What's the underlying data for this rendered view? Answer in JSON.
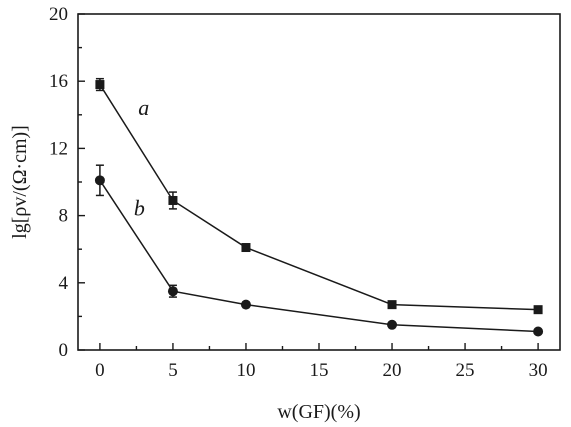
{
  "chart_data": {
    "type": "line",
    "xlabel": "w(GF)(%)",
    "ylabel": "lg[ρv/(Ω·cm)]",
    "xlim": [
      -1.5,
      31.5
    ],
    "ylim": [
      0,
      20
    ],
    "xticks": [
      0,
      5,
      10,
      15,
      20,
      25,
      30
    ],
    "yticks": [
      0,
      4,
      8,
      12,
      16,
      20
    ],
    "grid": false,
    "series": [
      {
        "name": "a",
        "marker": "square",
        "x": [
          0,
          5,
          10,
          20,
          30
        ],
        "y": [
          15.8,
          8.9,
          6.1,
          2.7,
          2.4
        ],
        "err": [
          0.35,
          0.5,
          0,
          0,
          0
        ]
      },
      {
        "name": "b",
        "marker": "circle",
        "x": [
          0,
          5,
          10,
          20,
          30
        ],
        "y": [
          10.1,
          3.5,
          2.7,
          1.5,
          1.1
        ],
        "err": [
          0.9,
          0.35,
          0,
          0,
          0
        ]
      }
    ],
    "annotations": [
      {
        "text": "a",
        "x": 3.0,
        "y": 14.0
      },
      {
        "text": "b",
        "x": 2.7,
        "y": 8.0
      }
    ]
  }
}
